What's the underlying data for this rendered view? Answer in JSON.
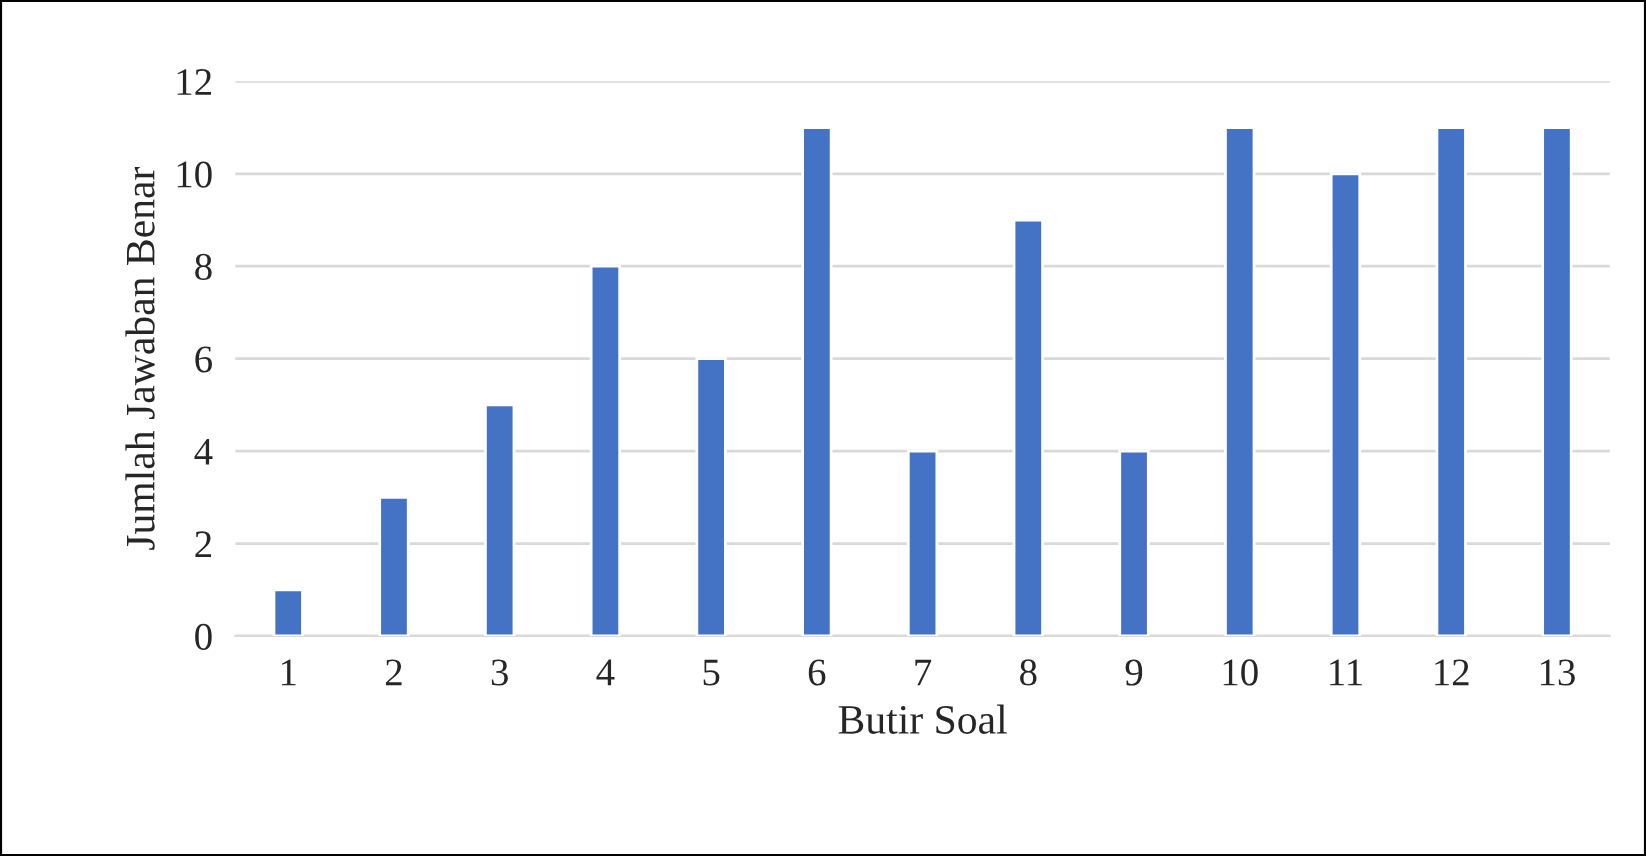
{
  "chart_data": {
    "type": "bar",
    "xlabel": "Butir Soal",
    "ylabel": "Jumlah Jawaban Benar",
    "categories": [
      "1",
      "2",
      "3",
      "4",
      "5",
      "6",
      "7",
      "8",
      "9",
      "10",
      "11",
      "12",
      "13"
    ],
    "series": [
      {
        "color": "#4472c4",
        "values": [
          1,
          3,
          5,
          8,
          6,
          11,
          4,
          9,
          4,
          11,
          10,
          11,
          11
        ]
      }
    ],
    "ylim": [
      0,
      12
    ],
    "yticks": [
      0,
      2,
      4,
      6,
      8,
      10,
      12
    ],
    "grid": "y",
    "legend": false
  }
}
